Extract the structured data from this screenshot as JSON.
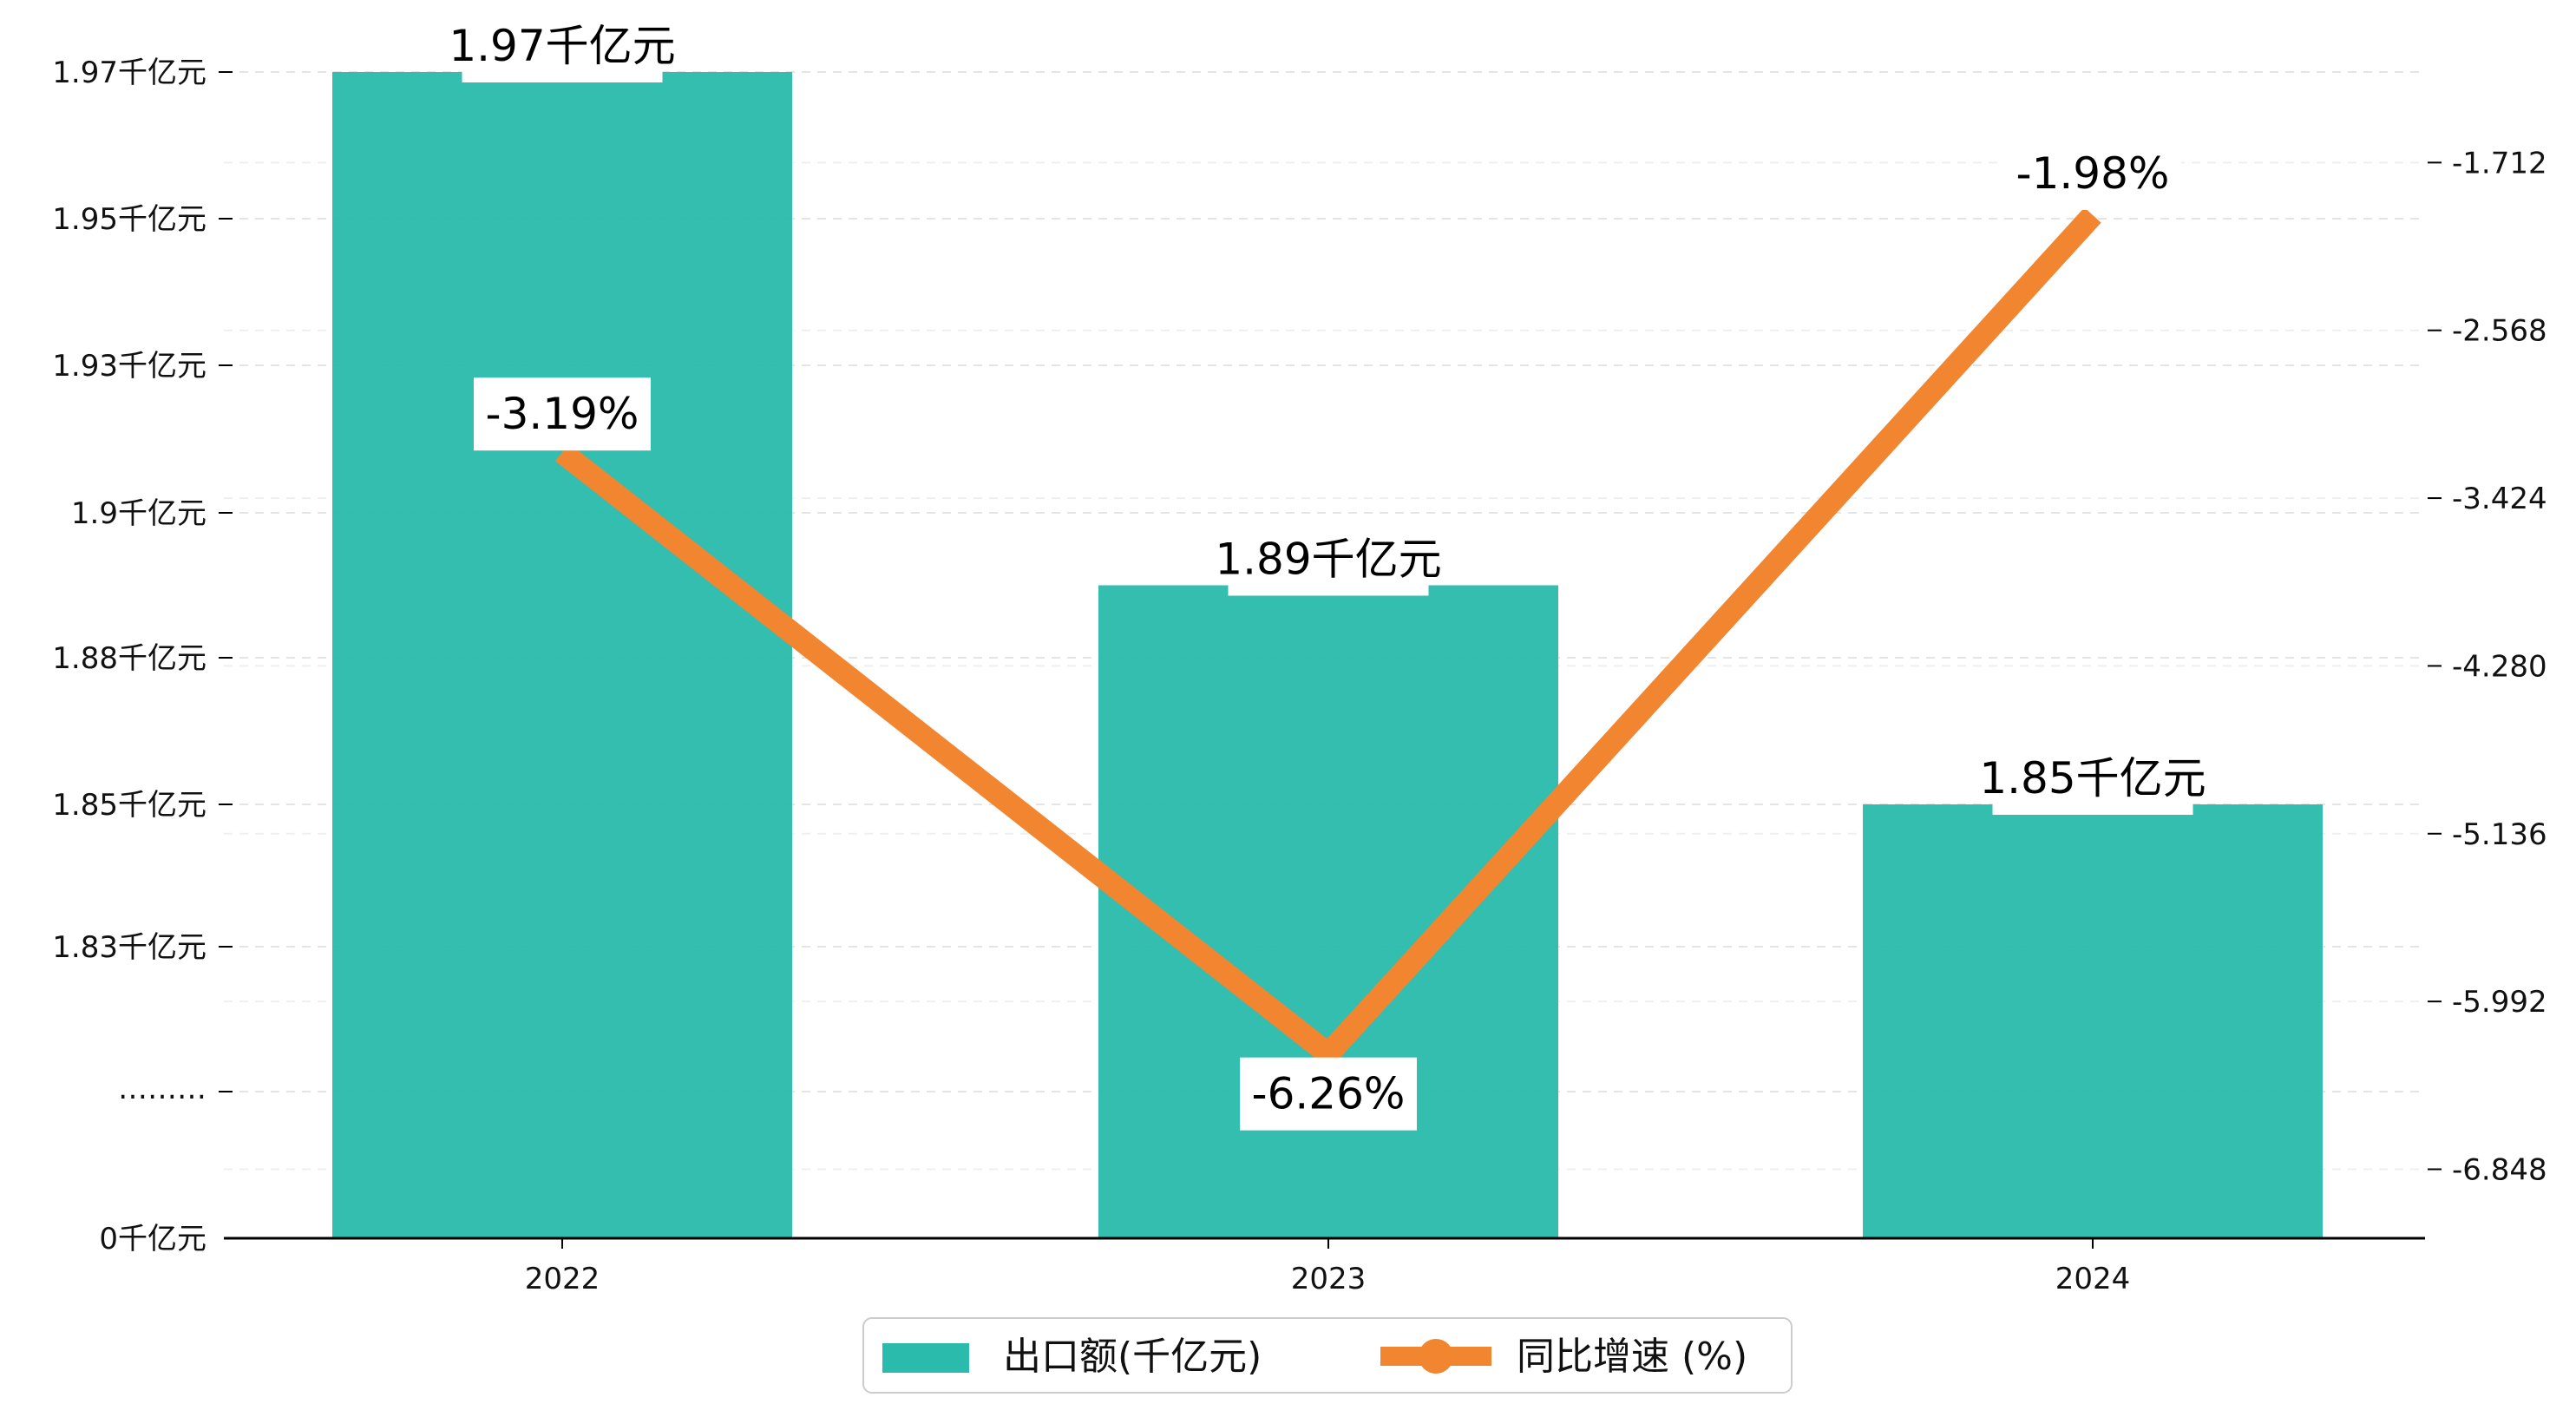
{
  "chart_data": {
    "type": "bar",
    "categories": [
      "2022",
      "2023",
      "2024"
    ],
    "series": [
      {
        "name": "出口额(千亿元)",
        "type": "bar",
        "axis": "left",
        "values": [
          1.97,
          1.89,
          1.85
        ],
        "labels": [
          "1.97千亿元",
          "1.89千亿元",
          "1.85千亿元"
        ],
        "color": "#2bbbad"
      },
      {
        "name": "同比增速 (%)",
        "type": "line",
        "axis": "right",
        "values": [
          -3.19,
          -6.26,
          -1.98
        ],
        "labels": [
          "-3.19%",
          "-6.26%",
          "-1.98%"
        ],
        "color": "#f28530"
      }
    ],
    "y_left": {
      "tick_labels": [
        "0千亿元",
        "1.83千亿元",
        "1.85千亿元",
        "1.88千亿元",
        "1.9千亿元",
        "1.93千亿元",
        "1.95千亿元",
        "1.97千亿元"
      ],
      "break_label": "………"
    },
    "y_right": {
      "ylim": [
        -7.2,
        -1.25
      ],
      "ticks": [
        -1.712,
        -2.568,
        -3.424,
        -4.28,
        -5.136,
        -5.992,
        -6.848
      ],
      "tick_labels": [
        "-1.712",
        "-2.568",
        "-3.424",
        "-4.280",
        "-5.136",
        "-5.992",
        "-6.848"
      ]
    },
    "grid": true,
    "legend_position": "bottom-center",
    "xlabel": "",
    "ylabel": ""
  }
}
